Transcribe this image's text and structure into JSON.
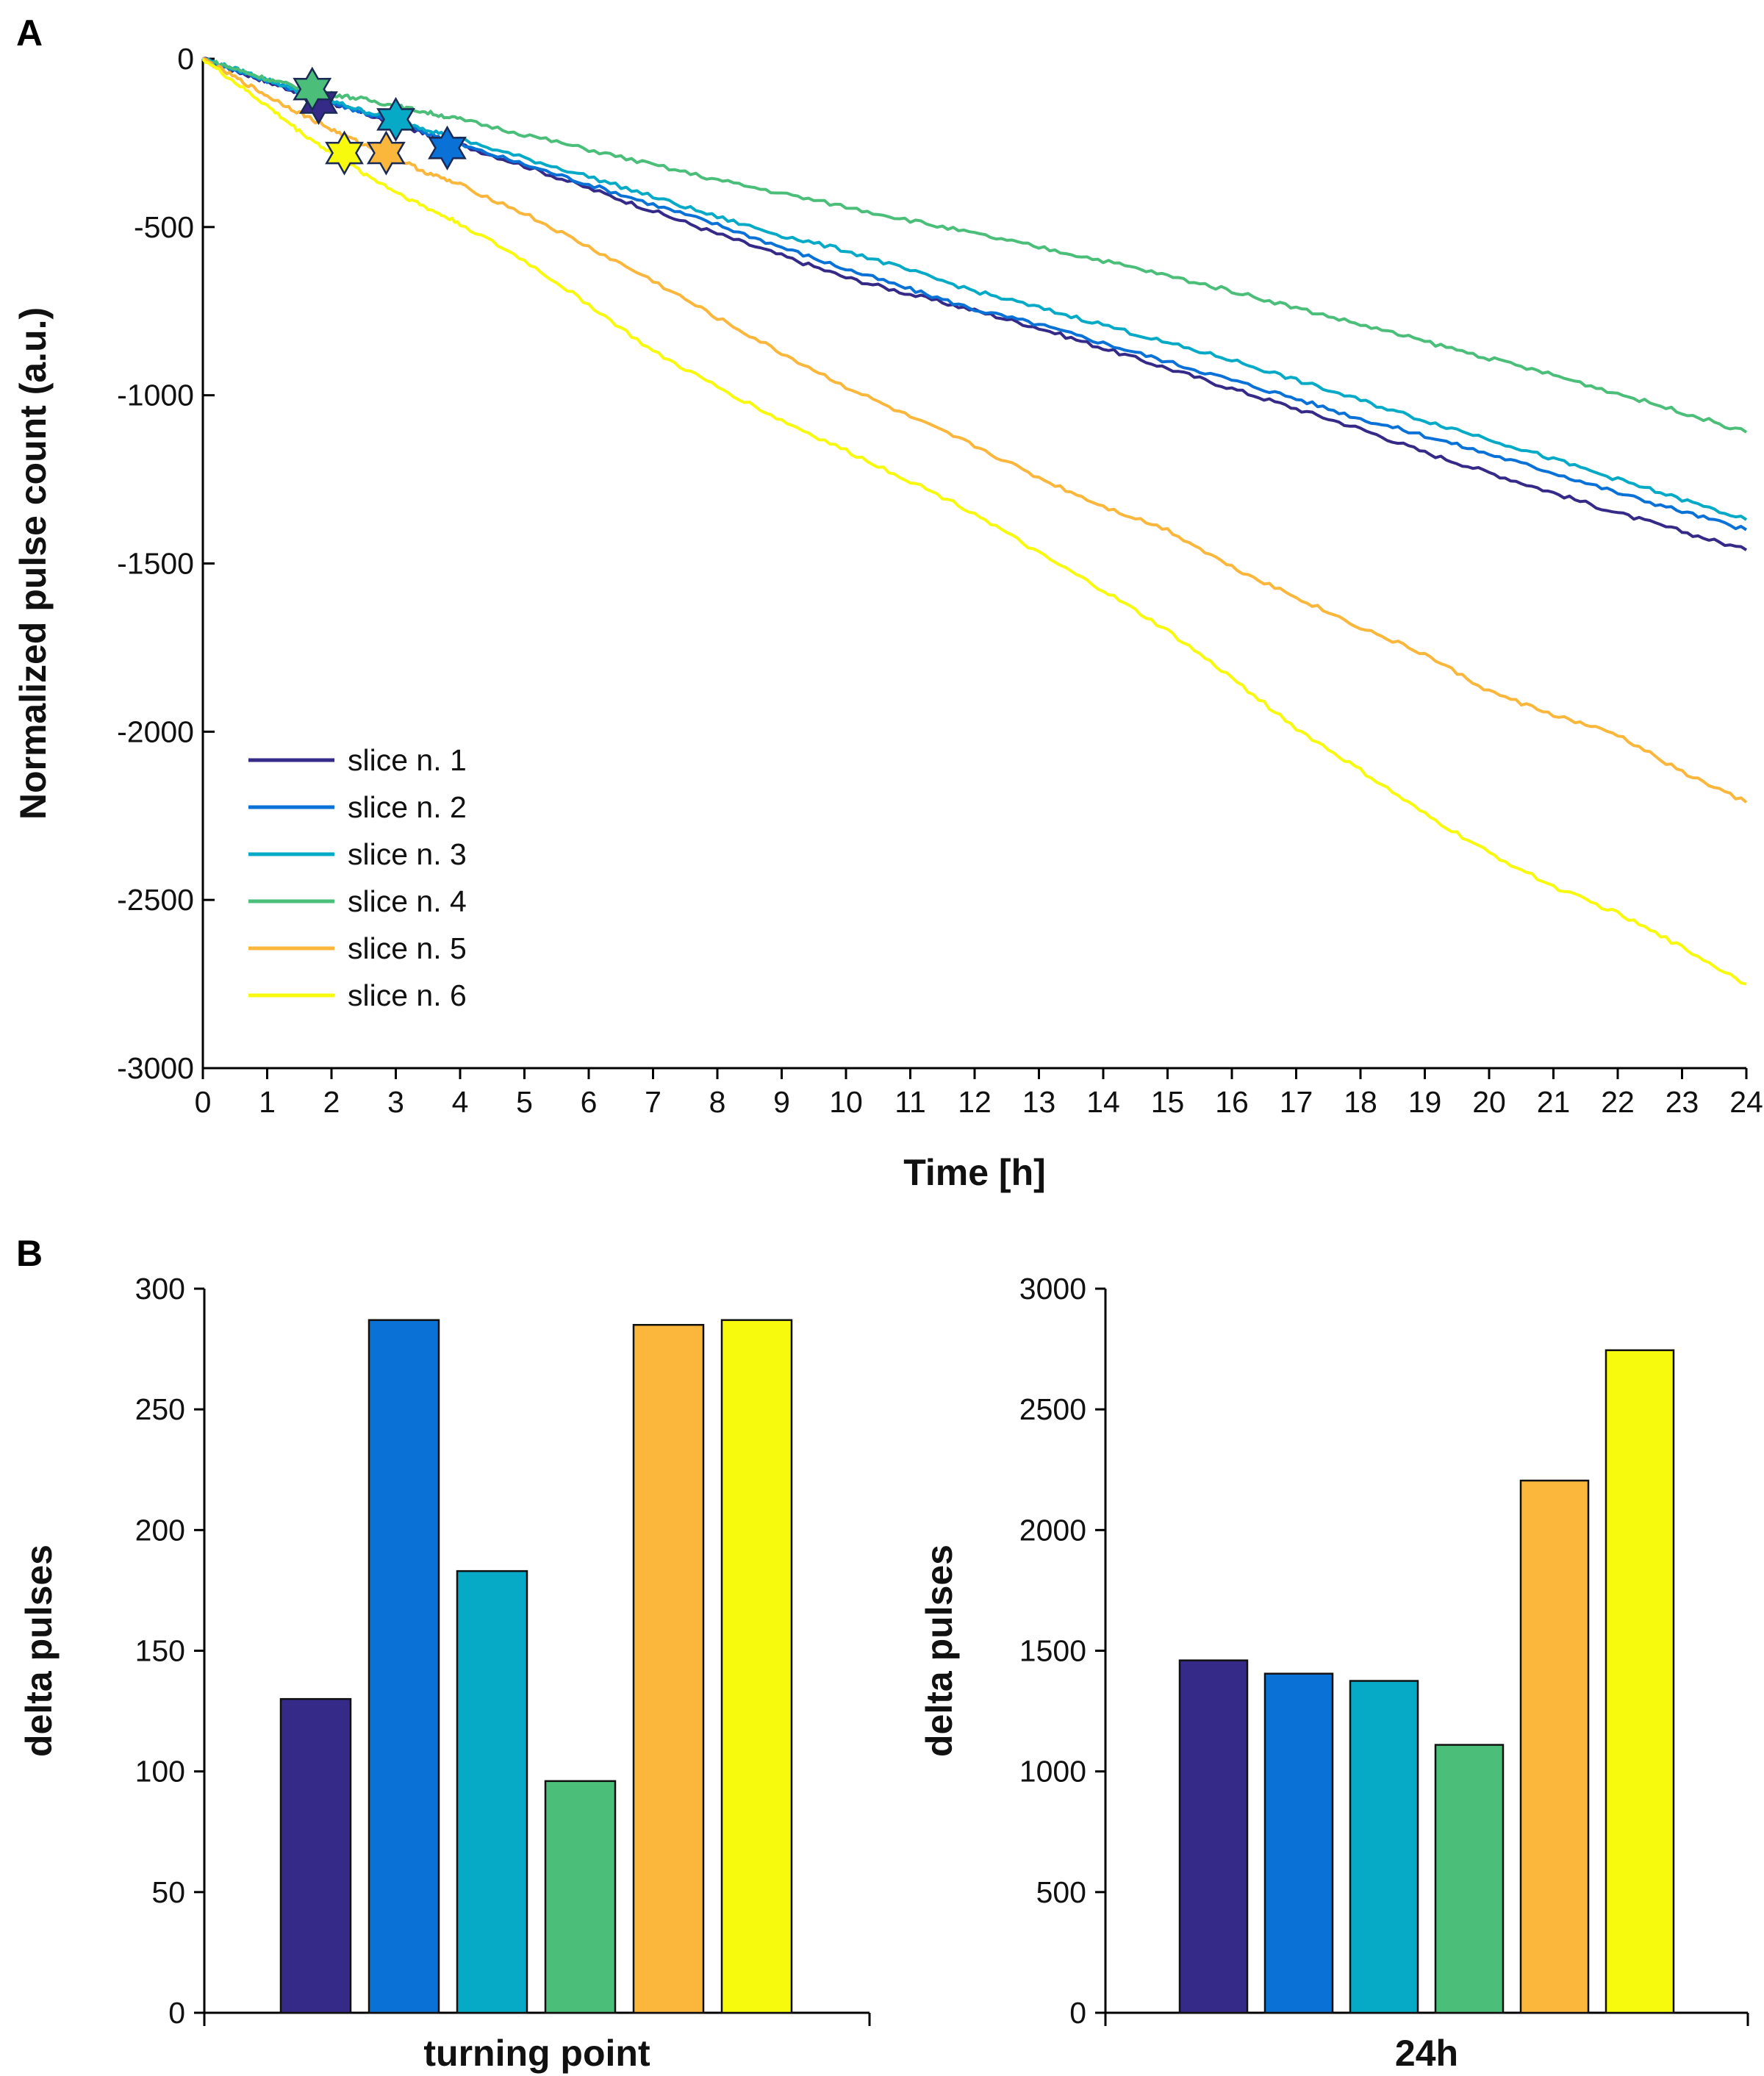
{
  "panels": [
    {
      "label": "A"
    },
    {
      "label": "B"
    }
  ],
  "series_colors": [
    "#352a87",
    "#0a72d6",
    "#07aac6",
    "#4bbe79",
    "#fbb63c",
    "#f8fa0d"
  ],
  "chart_data": [
    {
      "type": "line",
      "title": "",
      "panel": "A",
      "xlabel": "Time [h]",
      "ylabel": "Normalized pulse count (a.u.)",
      "xlim": [
        0,
        24
      ],
      "ylim": [
        -3000,
        0
      ],
      "xticks": [
        0,
        1,
        2,
        3,
        4,
        5,
        6,
        7,
        8,
        9,
        10,
        11,
        12,
        13,
        14,
        15,
        16,
        17,
        18,
        19,
        20,
        21,
        22,
        23,
        24
      ],
      "yticks": [
        0,
        -500,
        -1000,
        -1500,
        -2000,
        -2500,
        -3000
      ],
      "grid": false,
      "legend_position": "lower-left",
      "x": [
        0,
        0.5,
        1,
        1.5,
        2,
        2.5,
        3,
        3.5,
        4,
        5,
        6,
        7,
        8,
        9,
        10,
        11,
        12,
        13,
        14,
        15,
        16,
        17,
        18,
        19,
        20,
        21,
        22,
        23,
        24
      ],
      "series": [
        {
          "name": "slice n. 1",
          "color": "#352a87",
          "values": [
            0,
            -35,
            -68,
            -100,
            -132,
            -162,
            -194,
            -225,
            -255,
            -318,
            -385,
            -452,
            -520,
            -585,
            -650,
            -700,
            -748,
            -800,
            -860,
            -920,
            -980,
            -1040,
            -1100,
            -1170,
            -1230,
            -1290,
            -1350,
            -1405,
            -1460
          ],
          "marker": {
            "x": 1.8,
            "y": -130
          }
        },
        {
          "name": "slice n. 2",
          "color": "#0a72d6",
          "values": [
            0,
            -32,
            -65,
            -98,
            -130,
            -160,
            -190,
            -222,
            -255,
            -314,
            -373,
            -433,
            -493,
            -560,
            -625,
            -685,
            -745,
            -790,
            -845,
            -900,
            -955,
            -1010,
            -1070,
            -1120,
            -1175,
            -1230,
            -1290,
            -1345,
            -1400
          ],
          "marker": {
            "x": 3.8,
            "y": -265
          }
        },
        {
          "name": "slice n. 3",
          "color": "#07aac6",
          "values": [
            0,
            -30,
            -62,
            -95,
            -125,
            -155,
            -180,
            -210,
            -240,
            -295,
            -350,
            -410,
            -470,
            -525,
            -570,
            -630,
            -690,
            -740,
            -790,
            -845,
            -895,
            -955,
            -1015,
            -1075,
            -1130,
            -1190,
            -1250,
            -1310,
            -1370
          ],
          "marker": {
            "x": 3.0,
            "y": -180
          }
        },
        {
          "name": "slice n. 4",
          "color": "#4bbe79",
          "values": [
            0,
            -30,
            -60,
            -85,
            -105,
            -120,
            -140,
            -160,
            -180,
            -225,
            -270,
            -315,
            -360,
            -400,
            -440,
            -480,
            -520,
            -560,
            -600,
            -645,
            -690,
            -740,
            -790,
            -840,
            -890,
            -940,
            -995,
            -1050,
            -1110
          ],
          "marker": {
            "x": 1.7,
            "y": -90
          }
        },
        {
          "name": "slice n. 5",
          "color": "#fbb63c",
          "values": [
            0,
            -55,
            -110,
            -160,
            -210,
            -255,
            -295,
            -340,
            -375,
            -460,
            -560,
            -660,
            -770,
            -875,
            -975,
            -1065,
            -1150,
            -1245,
            -1330,
            -1400,
            -1510,
            -1600,
            -1690,
            -1770,
            -1880,
            -1950,
            -2010,
            -2120,
            -2210
          ],
          "marker": {
            "x": 2.85,
            "y": -280
          }
        },
        {
          "name": "slice n. 6",
          "color": "#f8fa0d",
          "values": [
            0,
            -70,
            -140,
            -215,
            -280,
            -340,
            -395,
            -445,
            -490,
            -600,
            -730,
            -870,
            -975,
            -1075,
            -1165,
            -1255,
            -1350,
            -1470,
            -1580,
            -1700,
            -1840,
            -1990,
            -2115,
            -2245,
            -2360,
            -2460,
            -2540,
            -2640,
            -2750
          ],
          "marker": {
            "x": 2.2,
            "y": -280
          }
        }
      ]
    },
    {
      "type": "bar",
      "title": "",
      "panel": "B",
      "xlabel": "turning point",
      "ylabel": "delta pulses",
      "ylim": [
        0,
        300
      ],
      "yticks": [
        0,
        50,
        100,
        150,
        200,
        250,
        300
      ],
      "grid": false,
      "categories": [
        "slice n. 1",
        "slice n. 2",
        "slice n. 3",
        "slice n. 4",
        "slice n. 5",
        "slice n. 6"
      ],
      "values": [
        130,
        287,
        183,
        96,
        285,
        287
      ],
      "colors": [
        "#352a87",
        "#0a72d6",
        "#07aac6",
        "#4bbe79",
        "#fbb63c",
        "#f8fa0d"
      ]
    },
    {
      "type": "bar",
      "title": "",
      "panel": "B",
      "xlabel": "24h",
      "ylabel": "delta pulses",
      "ylim": [
        0,
        3000
      ],
      "yticks": [
        0,
        500,
        1000,
        1500,
        2000,
        2500,
        3000
      ],
      "grid": false,
      "categories": [
        "slice n. 1",
        "slice n. 2",
        "slice n. 3",
        "slice n. 4",
        "slice n. 5",
        "slice n. 6"
      ],
      "values": [
        1460,
        1405,
        1375,
        1110,
        2205,
        2745
      ],
      "colors": [
        "#352a87",
        "#0a72d6",
        "#07aac6",
        "#4bbe79",
        "#fbb63c",
        "#f8fa0d"
      ]
    }
  ]
}
